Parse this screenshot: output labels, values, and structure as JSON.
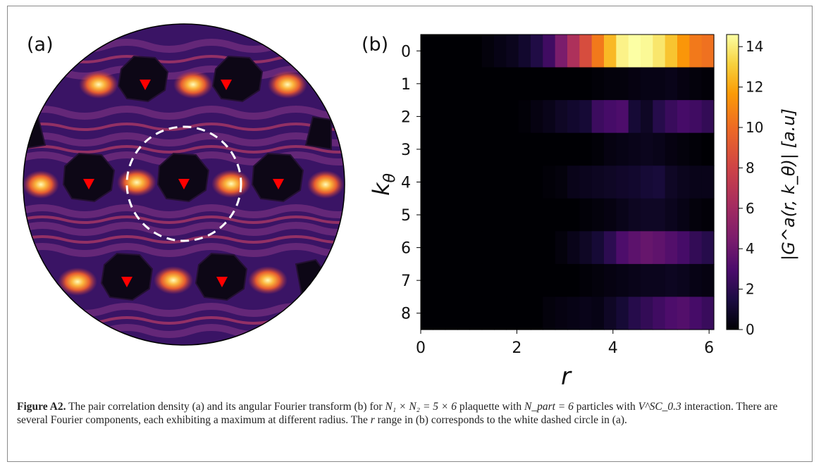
{
  "panel_a": {
    "label": "(a)"
  },
  "panel_b": {
    "label": "(b)",
    "xlabel": "r",
    "xticks": [
      "0",
      "2",
      "4",
      "6"
    ],
    "ylabel_base": "k",
    "ylabel_sub": "θ",
    "yticks": [
      "0",
      "1",
      "2",
      "3",
      "4",
      "5",
      "6",
      "7",
      "8"
    ],
    "colorbar_label": "|G^a(r, k_θ)| [a.u]",
    "colorbar_ticks": [
      "0",
      "2",
      "4",
      "6",
      "8",
      "10",
      "12",
      "14"
    ]
  },
  "caption": {
    "title": "Figure A2.",
    "text_1": " The pair correlation density (a) and its angular Fourier transform (b) for ",
    "formula_1": "N₁ × N₂ = 5 × 6",
    "text_2": " plaquette with ",
    "formula_2": "N_part = 6",
    "text_3": " particles with ",
    "formula_3": "V^SC_0.3",
    "text_4": " interaction. There are several Fourier components, each exhibiting a maximum at different radius. The ",
    "italic_r": "r",
    "text_5": " range in (b) corresponds to the white dashed circle in (a)."
  },
  "chart_data": {
    "type": "heatmap",
    "x_range": [
      0,
      6.1
    ],
    "x_bins": 24,
    "y_categories": [
      "0",
      "1",
      "2",
      "3",
      "4",
      "5",
      "6",
      "7",
      "8"
    ],
    "colorbar_range": [
      0,
      14.6
    ],
    "rows": [
      [
        0,
        0,
        0,
        0,
        0,
        0.2,
        0.4,
        0.6,
        1.0,
        1.6,
        2.6,
        4.5,
        6.5,
        8.5,
        10.5,
        12.5,
        14.2,
        14.6,
        14.4,
        13.8,
        12.8,
        11.5,
        10.5,
        10.2
      ],
      [
        0,
        0,
        0,
        0,
        0,
        0,
        0,
        0,
        0,
        0,
        0,
        0,
        0,
        0,
        0.1,
        0.2,
        0.2,
        0.3,
        0.4,
        0.4,
        0.5,
        0.3,
        0.2,
        0.1
      ],
      [
        0,
        0,
        0,
        0,
        0,
        0,
        0,
        0,
        0.1,
        0.3,
        0.5,
        0.8,
        1.0,
        1.2,
        2.5,
        2.8,
        3.0,
        1.2,
        0.8,
        1.8,
        2.4,
        2.8,
        2.6,
        2.2
      ],
      [
        0,
        0,
        0,
        0,
        0,
        0,
        0,
        0,
        0,
        0,
        0,
        0,
        0,
        0,
        0.1,
        0.3,
        0.4,
        0.5,
        0.6,
        0.5,
        0.3,
        0.2,
        0.1,
        0
      ],
      [
        0,
        0,
        0,
        0,
        0,
        0,
        0,
        0,
        0,
        0,
        0.1,
        0.2,
        0.5,
        0.6,
        0.7,
        0.8,
        0.9,
        1.0,
        1.2,
        1.3,
        0.8,
        0.6,
        0.5,
        0.5
      ],
      [
        0,
        0,
        0,
        0,
        0,
        0,
        0,
        0,
        0,
        0,
        0,
        0,
        0,
        0.1,
        0.2,
        0.3,
        0.5,
        0.7,
        0.8,
        0.8,
        0.6,
        0.4,
        0.2,
        0.1
      ],
      [
        0,
        0,
        0,
        0,
        0,
        0,
        0,
        0,
        0,
        0,
        0,
        0.2,
        0.5,
        0.8,
        1.2,
        2.0,
        3.0,
        3.5,
        3.8,
        3.6,
        3.2,
        2.8,
        2.2,
        1.8
      ],
      [
        0,
        0,
        0,
        0,
        0,
        0,
        0,
        0,
        0,
        0,
        0,
        0,
        0,
        0.1,
        0.2,
        0.3,
        0.4,
        0.5,
        0.6,
        0.6,
        0.7,
        0.6,
        0.4,
        0.3
      ],
      [
        0,
        0,
        0,
        0,
        0,
        0,
        0,
        0,
        0,
        0,
        0.2,
        0.3,
        0.4,
        0.5,
        0.4,
        0.8,
        1.2,
        1.8,
        2.2,
        2.6,
        3.0,
        3.2,
        2.8,
        2.4
      ]
    ]
  }
}
